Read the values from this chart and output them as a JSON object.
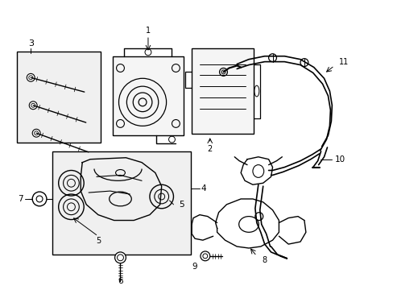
{
  "background_color": "#ffffff",
  "line_color": "#000000",
  "figsize": [
    4.89,
    3.6
  ],
  "dpi": 100,
  "gray_fill": "#e8e8e8"
}
